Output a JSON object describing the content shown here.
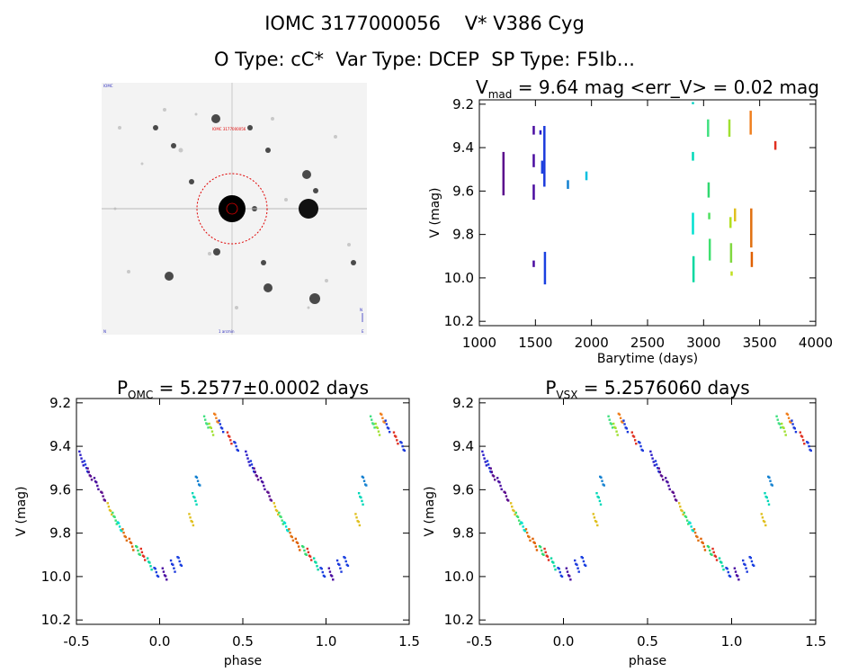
{
  "header": {
    "line1": "IOMC 3177000056    V* V386 Cyg",
    "line2": "O Type: cC*  Var Type: DCEP  SP Type: F5Ib..."
  },
  "thumbnail": {
    "top_left_label": "IOMC",
    "target_label": "IOMC 3177000056",
    "bottom_label": "1 arcmin",
    "bottom_left_label": "N",
    "bottom_right_label": "E",
    "right_arrow_label": "N"
  },
  "chart_data": [
    {
      "id": "lightcurve",
      "type": "scatter",
      "title": "V_mad = 9.64 mag  <err_V> = 0.02 mag",
      "title_main": "V",
      "title_sub": "mad",
      "title_rest": " = 9.64 mag <err_V> = 0.02 mag",
      "xlabel": "Barytime (days)",
      "ylabel": "V (mag)",
      "xlim": [
        1000,
        4000
      ],
      "ylim": [
        10.22,
        9.18
      ],
      "xticks": [
        1000,
        1500,
        2000,
        2500,
        3000,
        3500,
        4000
      ],
      "yticks": [
        9.2,
        9.4,
        9.6,
        9.8,
        10.0,
        10.2
      ],
      "ytick_labels": [
        "9.2",
        "9.4",
        "9.6",
        "9.8",
        "10.0",
        "10.2"
      ],
      "groups": [
        {
          "x": 1215,
          "y0": 9.42,
          "y1": 9.62,
          "color": "#5a0a8c"
        },
        {
          "x": 1485,
          "y0": 9.3,
          "y1": 9.34,
          "color": "#4a0ca0"
        },
        {
          "x": 1485,
          "y0": 9.43,
          "y1": 9.49,
          "color": "#4a0ca0"
        },
        {
          "x": 1485,
          "y0": 9.57,
          "y1": 9.64,
          "color": "#4a0ca0"
        },
        {
          "x": 1485,
          "y0": 9.92,
          "y1": 9.95,
          "color": "#4a0ca0"
        },
        {
          "x": 1545,
          "y0": 9.32,
          "y1": 9.34,
          "color": "#2a1cc8"
        },
        {
          "x": 1580,
          "y0": 9.3,
          "y1": 9.58,
          "color": "#1c3adc"
        },
        {
          "x": 1585,
          "y0": 9.88,
          "y1": 10.03,
          "color": "#1a40e0"
        },
        {
          "x": 1560,
          "y0": 9.46,
          "y1": 9.52,
          "color": "#1a40e0"
        },
        {
          "x": 1790,
          "y0": 9.55,
          "y1": 9.59,
          "color": "#1280d0"
        },
        {
          "x": 1955,
          "y0": 9.51,
          "y1": 9.55,
          "color": "#00c0e0"
        },
        {
          "x": 2905,
          "y0": 9.19,
          "y1": 9.2,
          "color": "#00d0c0"
        },
        {
          "x": 2905,
          "y0": 9.42,
          "y1": 9.46,
          "color": "#00d8b8"
        },
        {
          "x": 2905,
          "y0": 9.7,
          "y1": 9.8,
          "color": "#00e0d0"
        },
        {
          "x": 2910,
          "y0": 9.9,
          "y1": 10.02,
          "color": "#00d8a0"
        },
        {
          "x": 3040,
          "y0": 9.27,
          "y1": 9.35,
          "color": "#40e080"
        },
        {
          "x": 3045,
          "y0": 9.56,
          "y1": 9.63,
          "color": "#30d870"
        },
        {
          "x": 3050,
          "y0": 9.7,
          "y1": 9.73,
          "color": "#50e060"
        },
        {
          "x": 3055,
          "y0": 9.82,
          "y1": 9.92,
          "color": "#40e070"
        },
        {
          "x": 3230,
          "y0": 9.27,
          "y1": 9.35,
          "color": "#a0e030"
        },
        {
          "x": 3240,
          "y0": 9.72,
          "y1": 9.77,
          "color": "#b0e020"
        },
        {
          "x": 3245,
          "y0": 9.84,
          "y1": 9.93,
          "color": "#80d840"
        },
        {
          "x": 3250,
          "y0": 9.97,
          "y1": 9.99,
          "color": "#c0e020"
        },
        {
          "x": 3280,
          "y0": 9.68,
          "y1": 9.74,
          "color": "#e0c020"
        },
        {
          "x": 3420,
          "y0": 9.23,
          "y1": 9.34,
          "color": "#f08020"
        },
        {
          "x": 3425,
          "y0": 9.68,
          "y1": 9.86,
          "color": "#e07010"
        },
        {
          "x": 3430,
          "y0": 9.88,
          "y1": 9.95,
          "color": "#e06000"
        },
        {
          "x": 3640,
          "y0": 9.37,
          "y1": 9.41,
          "color": "#e03020"
        }
      ]
    },
    {
      "id": "phase_omc",
      "type": "scatter",
      "title_main": "P",
      "title_sub": "OMC",
      "title_rest": " = 5.2577±0.0002 days",
      "xlabel": "phase",
      "ylabel": "V (mag)",
      "xlim": [
        -0.5,
        1.5
      ],
      "ylim": [
        10.22,
        9.18
      ],
      "xticks": [
        -0.5,
        0.0,
        0.5,
        1.0,
        1.5
      ],
      "xtick_labels": [
        "-0.5",
        "0.0",
        "0.5",
        "1.0",
        "1.5"
      ],
      "yticks": [
        9.2,
        9.4,
        9.6,
        9.8,
        10.0,
        10.2
      ],
      "ytick_labels": [
        "9.2",
        "9.4",
        "9.6",
        "9.8",
        "10.0",
        "10.2"
      ]
    },
    {
      "id": "phase_vsx",
      "type": "scatter",
      "title_main": "P",
      "title_sub": "VSX",
      "title_rest": " = 5.2576060 days",
      "xlabel": "phase",
      "ylabel": "V (mag)",
      "xlim": [
        -0.5,
        1.5
      ],
      "ylim": [
        10.22,
        9.18
      ],
      "xticks": [
        -0.5,
        0.0,
        0.5,
        1.0,
        1.5
      ],
      "xtick_labels": [
        "-0.5",
        "0.0",
        "0.5",
        "1.0",
        "1.5"
      ],
      "yticks": [
        9.2,
        9.4,
        9.6,
        9.8,
        10.0,
        10.2
      ],
      "ytick_labels": [
        "9.2",
        "9.4",
        "9.6",
        "9.8",
        "10.0",
        "10.2"
      ]
    }
  ],
  "phase_curve_points": [
    {
      "phase": -0.47,
      "v": 9.46,
      "color": "#2a1cc8"
    },
    {
      "phase": -0.44,
      "v": 9.5,
      "color": "#1c3adc"
    },
    {
      "phase": -0.42,
      "v": 9.53,
      "color": "#5a0a8c"
    },
    {
      "phase": -0.38,
      "v": 9.57,
      "color": "#4a0ca0"
    },
    {
      "phase": -0.34,
      "v": 9.63,
      "color": "#5a0a8c"
    },
    {
      "phase": -0.3,
      "v": 9.69,
      "color": "#e0c020"
    },
    {
      "phase": -0.27,
      "v": 9.73,
      "color": "#40e070"
    },
    {
      "phase": -0.24,
      "v": 9.77,
      "color": "#00e0d0"
    },
    {
      "phase": -0.21,
      "v": 9.81,
      "color": "#e07010"
    },
    {
      "phase": -0.17,
      "v": 9.85,
      "color": "#e06000"
    },
    {
      "phase": -0.13,
      "v": 9.88,
      "color": "#30d870"
    },
    {
      "phase": -0.1,
      "v": 9.9,
      "color": "#e03020"
    },
    {
      "phase": -0.06,
      "v": 9.94,
      "color": "#00d8a0"
    },
    {
      "phase": -0.02,
      "v": 9.98,
      "color": "#1a40e0"
    },
    {
      "phase": 0.03,
      "v": 9.99,
      "color": "#4a0ca0"
    },
    {
      "phase": 0.08,
      "v": 9.95,
      "color": "#1c3adc"
    },
    {
      "phase": 0.12,
      "v": 9.93,
      "color": "#1a40e0"
    },
    {
      "phase": 0.19,
      "v": 9.74,
      "color": "#e0c020"
    },
    {
      "phase": 0.21,
      "v": 9.64,
      "color": "#00d8b8"
    },
    {
      "phase": 0.23,
      "v": 9.56,
      "color": "#1280d0"
    },
    {
      "phase": 0.28,
      "v": 9.29,
      "color": "#40e080"
    },
    {
      "phase": 0.31,
      "v": 9.32,
      "color": "#a0e030"
    },
    {
      "phase": 0.34,
      "v": 9.27,
      "color": "#f08020"
    },
    {
      "phase": 0.37,
      "v": 9.31,
      "color": "#1c3adc"
    },
    {
      "phase": 0.42,
      "v": 9.36,
      "color": "#e03020"
    },
    {
      "phase": 0.46,
      "v": 9.4,
      "color": "#1c3adc"
    }
  ]
}
